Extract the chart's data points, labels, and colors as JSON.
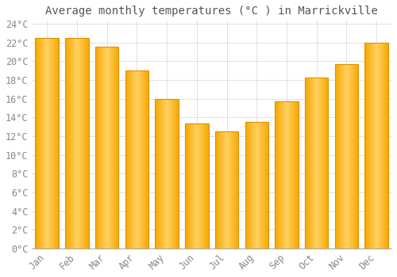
{
  "title": "Average monthly temperatures (°C ) in Marrickville",
  "months": [
    "Jan",
    "Feb",
    "Mar",
    "Apr",
    "May",
    "Jun",
    "Jul",
    "Aug",
    "Sep",
    "Oct",
    "Nov",
    "Dec"
  ],
  "values": [
    22.5,
    22.5,
    21.5,
    19.0,
    16.0,
    13.3,
    12.5,
    13.5,
    15.7,
    18.2,
    19.7,
    22.0
  ],
  "bar_color_left": "#F5A800",
  "bar_color_center": "#FFD060",
  "bar_color_right": "#F5A800",
  "background_color": "#FFFFFF",
  "grid_color": "#DDDDDD",
  "text_color": "#888888",
  "ylim": [
    0,
    24
  ],
  "ytick_step": 2,
  "title_fontsize": 10,
  "tick_fontsize": 8.5
}
